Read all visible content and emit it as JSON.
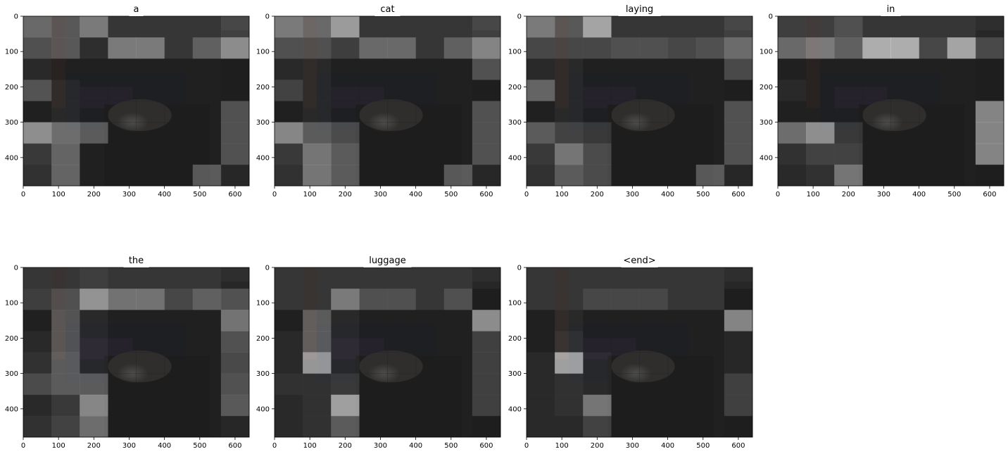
{
  "chart_data": {
    "type": "heatmap",
    "image_extent": {
      "x": [
        0,
        640
      ],
      "y": [
        480,
        0
      ]
    },
    "grid_size": {
      "rows": 8,
      "cols": 8
    },
    "xticks": [
      0,
      100,
      200,
      300,
      400,
      500,
      600
    ],
    "yticks": [
      0,
      100,
      200,
      300,
      400
    ],
    "xtick_labels": [
      "0",
      "100",
      "200",
      "300",
      "400",
      "500",
      "600"
    ],
    "ytick_labels": [
      "0",
      "100",
      "200",
      "300",
      "400"
    ],
    "panels": [
      {
        "title": "a",
        "weights": [
          [
            0.45,
            0.35,
            0.55,
            0.15,
            0.15,
            0.15,
            0.15,
            0.25
          ],
          [
            0.3,
            0.35,
            0.1,
            0.55,
            0.55,
            0.15,
            0.4,
            0.7
          ],
          [
            0.1,
            0.05,
            0.05,
            0.05,
            0.05,
            0.05,
            0.05,
            0.05
          ],
          [
            0.35,
            0.1,
            0.05,
            0.05,
            0.05,
            0.05,
            0.05,
            0.05
          ],
          [
            0.05,
            0.1,
            0.05,
            0.05,
            0.05,
            0.05,
            0.05,
            0.35
          ],
          [
            0.7,
            0.5,
            0.4,
            0.05,
            0.05,
            0.05,
            0.05,
            0.35
          ],
          [
            0.2,
            0.45,
            0.05,
            0.05,
            0.05,
            0.05,
            0.05,
            0.35
          ],
          [
            0.15,
            0.45,
            0.05,
            0.05,
            0.05,
            0.05,
            0.4,
            0.1
          ]
        ]
      },
      {
        "title": "cat",
        "weights": [
          [
            0.55,
            0.45,
            0.75,
            0.15,
            0.15,
            0.15,
            0.15,
            0.25
          ],
          [
            0.3,
            0.3,
            0.2,
            0.45,
            0.45,
            0.15,
            0.4,
            0.65
          ],
          [
            0.1,
            0.1,
            0.05,
            0.05,
            0.05,
            0.05,
            0.05,
            0.35
          ],
          [
            0.25,
            0.1,
            0.05,
            0.05,
            0.05,
            0.05,
            0.05,
            0.05
          ],
          [
            0.05,
            0.1,
            0.05,
            0.05,
            0.05,
            0.05,
            0.05,
            0.35
          ],
          [
            0.65,
            0.4,
            0.3,
            0.05,
            0.05,
            0.05,
            0.05,
            0.35
          ],
          [
            0.2,
            0.55,
            0.4,
            0.05,
            0.05,
            0.05,
            0.05,
            0.35
          ],
          [
            0.15,
            0.55,
            0.4,
            0.05,
            0.05,
            0.05,
            0.4,
            0.1
          ]
        ]
      },
      {
        "title": "laying",
        "weights": [
          [
            0.55,
            0.35,
            0.8,
            0.15,
            0.15,
            0.15,
            0.15,
            0.25
          ],
          [
            0.25,
            0.25,
            0.25,
            0.3,
            0.3,
            0.25,
            0.3,
            0.5
          ],
          [
            0.1,
            0.1,
            0.05,
            0.05,
            0.05,
            0.05,
            0.05,
            0.3
          ],
          [
            0.45,
            0.1,
            0.05,
            0.05,
            0.05,
            0.05,
            0.05,
            0.05
          ],
          [
            0.05,
            0.1,
            0.05,
            0.05,
            0.05,
            0.05,
            0.05,
            0.35
          ],
          [
            0.4,
            0.25,
            0.2,
            0.05,
            0.05,
            0.05,
            0.05,
            0.35
          ],
          [
            0.2,
            0.55,
            0.3,
            0.05,
            0.05,
            0.05,
            0.05,
            0.35
          ],
          [
            0.15,
            0.4,
            0.3,
            0.05,
            0.05,
            0.05,
            0.4,
            0.1
          ]
        ]
      },
      {
        "title": "in",
        "weights": [
          [
            0.2,
            0.2,
            0.3,
            0.15,
            0.15,
            0.15,
            0.15,
            0.1
          ],
          [
            0.45,
            0.55,
            0.4,
            0.85,
            0.85,
            0.25,
            0.8,
            0.3
          ],
          [
            0.05,
            0.05,
            0.05,
            0.05,
            0.05,
            0.05,
            0.05,
            0.05
          ],
          [
            0.1,
            0.05,
            0.05,
            0.05,
            0.05,
            0.05,
            0.05,
            0.05
          ],
          [
            0.05,
            0.05,
            0.05,
            0.05,
            0.05,
            0.05,
            0.05,
            0.65
          ],
          [
            0.5,
            0.7,
            0.2,
            0.05,
            0.05,
            0.05,
            0.05,
            0.65
          ],
          [
            0.15,
            0.25,
            0.25,
            0.05,
            0.05,
            0.05,
            0.05,
            0.65
          ],
          [
            0.1,
            0.15,
            0.55,
            0.05,
            0.05,
            0.05,
            0.05,
            0.05
          ]
        ]
      },
      {
        "title": "the",
        "weights": [
          [
            0.15,
            0.15,
            0.2,
            0.15,
            0.15,
            0.15,
            0.15,
            0.1
          ],
          [
            0.2,
            0.3,
            0.7,
            0.5,
            0.5,
            0.25,
            0.4,
            0.35
          ],
          [
            0.05,
            0.35,
            0.1,
            0.05,
            0.05,
            0.05,
            0.05,
            0.55
          ],
          [
            0.1,
            0.35,
            0.1,
            0.05,
            0.05,
            0.05,
            0.05,
            0.35
          ],
          [
            0.15,
            0.4,
            0.1,
            0.05,
            0.05,
            0.05,
            0.05,
            0.3
          ],
          [
            0.3,
            0.4,
            0.4,
            0.05,
            0.05,
            0.05,
            0.05,
            0.35
          ],
          [
            0.1,
            0.2,
            0.65,
            0.05,
            0.05,
            0.05,
            0.05,
            0.4
          ],
          [
            0.15,
            0.25,
            0.5,
            0.05,
            0.05,
            0.05,
            0.05,
            0.1
          ]
        ]
      },
      {
        "title": "luggage",
        "weights": [
          [
            0.15,
            0.15,
            0.15,
            0.15,
            0.15,
            0.15,
            0.15,
            0.1
          ],
          [
            0.15,
            0.15,
            0.55,
            0.3,
            0.3,
            0.15,
            0.3,
            0.05
          ],
          [
            0.05,
            0.4,
            0.1,
            0.05,
            0.05,
            0.05,
            0.05,
            0.7
          ],
          [
            0.1,
            0.4,
            0.1,
            0.05,
            0.05,
            0.05,
            0.05,
            0.25
          ],
          [
            0.1,
            0.75,
            0.1,
            0.05,
            0.05,
            0.05,
            0.05,
            0.25
          ],
          [
            0.15,
            0.15,
            0.2,
            0.05,
            0.05,
            0.05,
            0.05,
            0.25
          ],
          [
            0.1,
            0.15,
            0.8,
            0.05,
            0.05,
            0.05,
            0.05,
            0.25
          ],
          [
            0.1,
            0.15,
            0.4,
            0.05,
            0.05,
            0.05,
            0.05,
            0.05
          ]
        ]
      },
      {
        "title": "<end>",
        "weights": [
          [
            0.15,
            0.15,
            0.15,
            0.15,
            0.15,
            0.15,
            0.15,
            0.1
          ],
          [
            0.15,
            0.15,
            0.25,
            0.25,
            0.25,
            0.15,
            0.15,
            0.05
          ],
          [
            0.05,
            0.1,
            0.05,
            0.05,
            0.05,
            0.05,
            0.05,
            0.65
          ],
          [
            0.05,
            0.15,
            0.05,
            0.05,
            0.05,
            0.05,
            0.05,
            0.1
          ],
          [
            0.1,
            0.8,
            0.1,
            0.05,
            0.05,
            0.05,
            0.05,
            0.1
          ],
          [
            0.1,
            0.15,
            0.1,
            0.05,
            0.05,
            0.05,
            0.05,
            0.25
          ],
          [
            0.1,
            0.15,
            0.55,
            0.05,
            0.05,
            0.05,
            0.05,
            0.25
          ],
          [
            0.1,
            0.1,
            0.25,
            0.05,
            0.05,
            0.05,
            0.05,
            0.05
          ]
        ]
      }
    ]
  }
}
